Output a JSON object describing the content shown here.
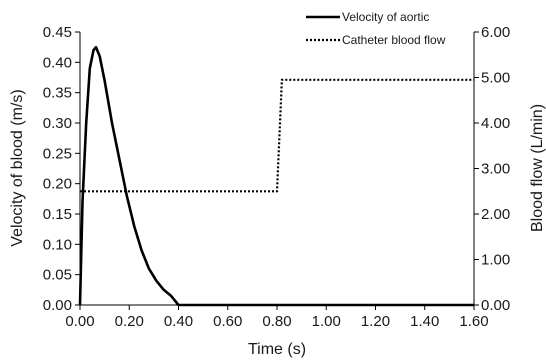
{
  "chart_data": {
    "type": "line",
    "xlabel": "Time (s)",
    "ylabel_left": "Velocity of blood (m/s)",
    "ylabel_right": "Blood flow (L/min)",
    "xlim": [
      0,
      1.6
    ],
    "ylim_left": [
      0,
      0.45
    ],
    "ylim_right": [
      0,
      6
    ],
    "x_ticks": [
      "0.00",
      "0.20",
      "0.40",
      "0.60",
      "0.80",
      "1.00",
      "1.20",
      "1.40",
      "1.60"
    ],
    "y_left_ticks": [
      "0.00",
      "0.05",
      "0.10",
      "0.15",
      "0.20",
      "0.25",
      "0.30",
      "0.35",
      "0.40",
      "0.45"
    ],
    "y_right_ticks": [
      "0.00",
      "1.00",
      "2.00",
      "3.00",
      "4.00",
      "5.00",
      "6.00"
    ],
    "grid": false,
    "legend_position": "top-right",
    "series": [
      {
        "name": "Velocity of aortic",
        "axis": "left",
        "style": "solid",
        "color": "#000000",
        "points": [
          [
            0.0,
            0.0
          ],
          [
            0.01,
            0.17
          ],
          [
            0.025,
            0.3
          ],
          [
            0.04,
            0.39
          ],
          [
            0.055,
            0.42
          ],
          [
            0.065,
            0.425
          ],
          [
            0.08,
            0.41
          ],
          [
            0.1,
            0.37
          ],
          [
            0.13,
            0.3
          ],
          [
            0.16,
            0.24
          ],
          [
            0.19,
            0.18
          ],
          [
            0.22,
            0.13
          ],
          [
            0.25,
            0.09
          ],
          [
            0.28,
            0.06
          ],
          [
            0.31,
            0.04
          ],
          [
            0.34,
            0.025
          ],
          [
            0.37,
            0.015
          ],
          [
            0.4,
            0.0
          ],
          [
            1.6,
            0.0
          ]
        ]
      },
      {
        "name": "Catheter blood flow",
        "axis": "right",
        "style": "dotted",
        "color": "#000000",
        "points": [
          [
            0.0,
            2.5
          ],
          [
            0.8,
            2.5
          ],
          [
            0.82,
            4.95
          ],
          [
            1.6,
            4.95
          ]
        ]
      }
    ]
  }
}
